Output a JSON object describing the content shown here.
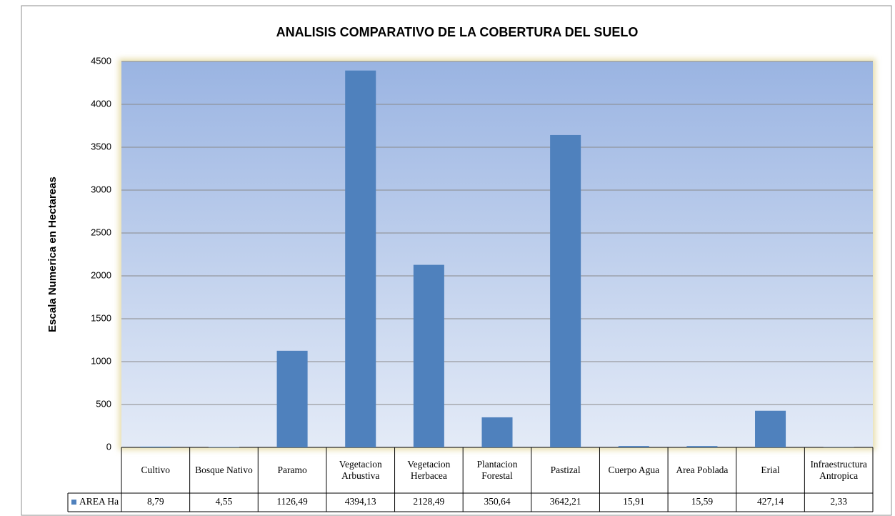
{
  "chart_data": {
    "type": "bar",
    "title": "ANALISIS COMPARATIVO DE LA COBERTURA DEL SUELO",
    "y_label": "Escala Numerica en Hectareas",
    "categories": [
      "Cultivo",
      "Bosque Nativo",
      "Paramo",
      "Vegetacion Arbustiva",
      "Vegetacion Herbacea",
      "Plantacion Forestal",
      "Pastizal",
      "Cuerpo Agua",
      "Area Poblada",
      "Erial",
      "Infraestructura Antropica"
    ],
    "series": [
      {
        "name": "AREA Ha",
        "color": "#4f81bd",
        "values": [
          8.79,
          4.55,
          1126.49,
          4394.13,
          2128.49,
          350.64,
          3642.21,
          15.91,
          15.59,
          427.14,
          2.33
        ],
        "value_labels": [
          "8,79",
          "4,55",
          "1126,49",
          "4394,13",
          "2128,49",
          "350,64",
          "3642,21",
          "15,91",
          "15,59",
          "427,14",
          "2,33"
        ]
      }
    ],
    "ylim": [
      0,
      4500
    ],
    "yticks": [
      0,
      500,
      1000,
      1500,
      2000,
      2500,
      3000,
      3500,
      4000,
      4500
    ],
    "grid": true
  }
}
